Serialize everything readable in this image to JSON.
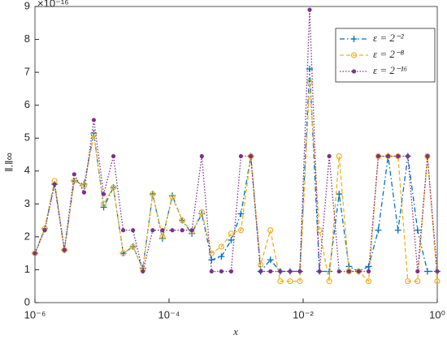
{
  "chart_data": {
    "type": "line",
    "x_label": "x",
    "y_label": "‖.‖∞",
    "y_exponent_label": "×10⁻¹⁶",
    "xscale": "log",
    "xlim": [
      1e-06,
      1
    ],
    "xticks": [
      {
        "value": 1e-06,
        "label": "10⁻⁶"
      },
      {
        "value": 0.0001,
        "label": "10⁻⁴"
      },
      {
        "value": 0.01,
        "label": "10⁻²"
      },
      {
        "value": 1,
        "label": "10⁰"
      }
    ],
    "ylim": [
      0,
      9
    ],
    "yticks": [
      0,
      1,
      2,
      3,
      4,
      5,
      6,
      7,
      8,
      9
    ],
    "grid": false,
    "legend": "upper right",
    "x": [
      1e-06,
      1.4e-06,
      1.96e-06,
      2.75e-06,
      3.85e-06,
      5.4e-06,
      7.55e-06,
      1.06e-05,
      1.48e-05,
      2.07e-05,
      2.9e-05,
      4.07e-05,
      5.7e-05,
      7.98e-05,
      0.000112,
      0.000157,
      0.000219,
      0.000308,
      0.000431,
      0.000603,
      0.000845,
      0.00118,
      0.00166,
      0.00232,
      0.00325,
      0.00456,
      0.00638,
      0.00893,
      0.0125,
      0.0175,
      0.0245,
      0.0344,
      0.0482,
      0.0675,
      0.0946,
      0.132,
      0.185,
      0.26,
      0.364,
      0.509,
      0.714,
      1
    ],
    "series": [
      {
        "name": "ε = 2⁻²",
        "color": "#0072bd",
        "style": "dashdot",
        "marker": "plus",
        "values": [
          1.5,
          2.25,
          3.6,
          1.6,
          3.7,
          3.6,
          5.15,
          2.9,
          3.5,
          1.5,
          1.7,
          1.05,
          3.3,
          1.95,
          3.25,
          2.5,
          2.1,
          2.7,
          1.3,
          1.4,
          1.9,
          2.7,
          4.45,
          0.95,
          1.3,
          0.95,
          0.95,
          0.95,
          7.1,
          0.95,
          0.95,
          3.3,
          1.1,
          0.95,
          1.1,
          2.2,
          4.45,
          2.2,
          4.45,
          2.2,
          0.95,
          0.95
        ]
      },
      {
        "name": "ε = 2⁻⁸",
        "color": "#edb120",
        "style": "dashed",
        "marker": "circle",
        "values": [
          1.5,
          2.25,
          3.7,
          1.6,
          3.7,
          3.55,
          5.1,
          3.0,
          3.5,
          1.5,
          1.7,
          1.0,
          3.3,
          2.0,
          3.2,
          2.5,
          2.15,
          2.75,
          1.5,
          1.7,
          2.1,
          2.2,
          4.45,
          1.15,
          2.2,
          0.65,
          0.65,
          0.65,
          6.7,
          2.2,
          0.65,
          4.45,
          0.95,
          0.95,
          0.65,
          4.45,
          4.45,
          4.45,
          0.65,
          0.65,
          4.45,
          0.65
        ]
      },
      {
        "name": "ε = 2⁻¹⁶",
        "color": "#7e2f8e",
        "style": "dotted",
        "marker": "dot",
        "values": [
          1.5,
          2.2,
          3.6,
          1.6,
          3.9,
          3.35,
          5.55,
          3.3,
          4.45,
          2.2,
          2.2,
          0.95,
          2.2,
          2.2,
          2.2,
          2.2,
          2.2,
          4.45,
          0.95,
          0.95,
          0.95,
          4.45,
          4.45,
          0.95,
          0.95,
          0.95,
          0.95,
          0.95,
          8.9,
          0.95,
          4.45,
          0.95,
          0.95,
          0.95,
          0.95,
          4.45,
          4.45,
          4.45,
          4.45,
          0.95,
          4.45,
          0.95
        ]
      }
    ]
  }
}
